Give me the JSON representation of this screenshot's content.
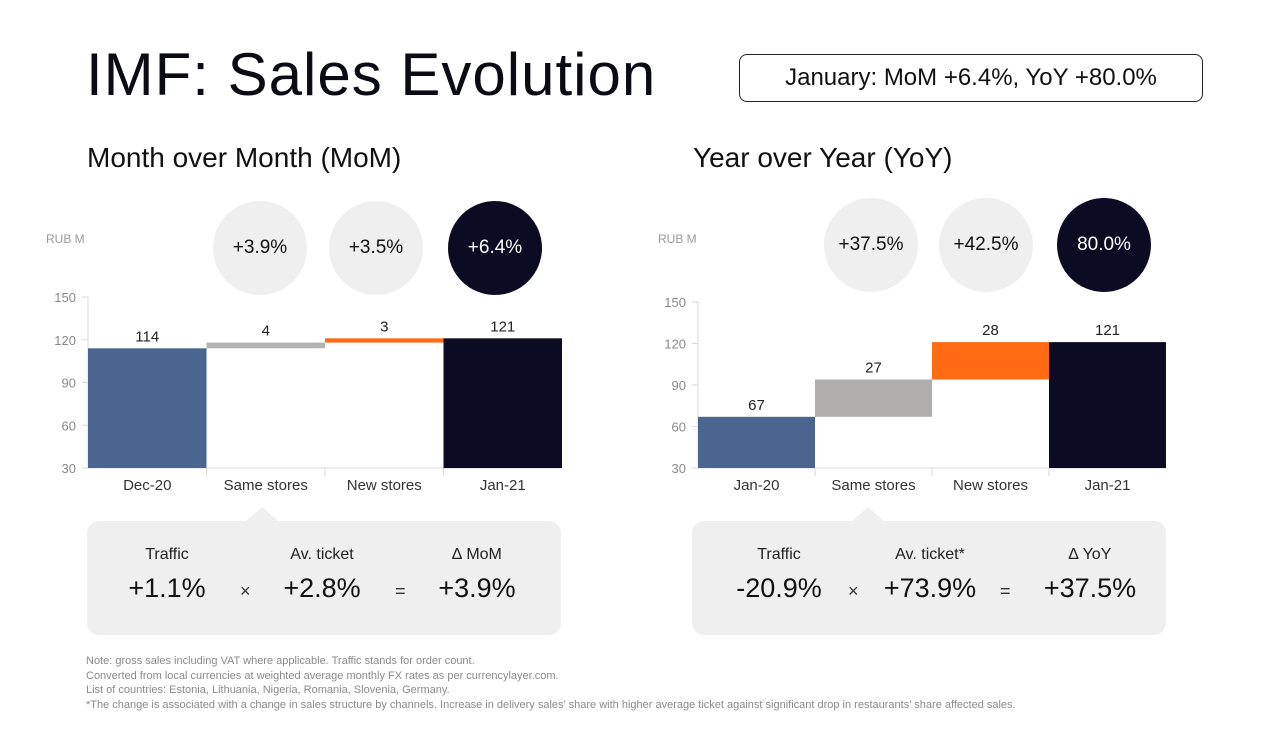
{
  "title": "IMF: Sales Evolution",
  "headline": "January: MoM +6.4%, YoY +80.0%",
  "mom": {
    "section_title": "Month over Month (MoM)",
    "unit": "RUB M",
    "bubbles": [
      "+3.9%",
      "+3.5%",
      "+6.4%"
    ],
    "callout": {
      "traffic_label": "Traffic",
      "traffic_value": "+1.1%",
      "times": "×",
      "ticket_label": "Av. ticket",
      "ticket_value": "+2.8%",
      "equals": "=",
      "delta_label": "∆ MoM",
      "delta_value": "+3.9%"
    }
  },
  "yoy": {
    "section_title": "Year over Year (YoY)",
    "unit": "RUB M",
    "bubbles": [
      "+37.5%",
      "+42.5%",
      "80.0%"
    ],
    "callout": {
      "traffic_label": "Traffic",
      "traffic_value": "-20.9%",
      "times": "×",
      "ticket_label": "Av. ticket*",
      "ticket_value": "+73.9%",
      "equals": "=",
      "delta_label": "∆ YoY",
      "delta_value": "+37.5%"
    }
  },
  "chart_data": [
    {
      "type": "bar",
      "subtype": "waterfall",
      "title": "Month over Month (MoM)",
      "ylabel": "RUB M",
      "ylim": [
        30,
        150
      ],
      "yticks": [
        30,
        60,
        90,
        120,
        150
      ],
      "categories": [
        "Dec-20",
        "Same stores",
        "New stores",
        "Jan-21"
      ],
      "bars": [
        {
          "start": 0,
          "end": 114,
          "label": "114",
          "color": "#4a658f"
        },
        {
          "start": 114,
          "end": 118,
          "label": "4",
          "color": "#b3b3b3"
        },
        {
          "start": 118,
          "end": 121,
          "label": "3",
          "color": "#ff6a13"
        },
        {
          "start": 0,
          "end": 121,
          "label": "121",
          "color": "#0b0b24"
        }
      ]
    },
    {
      "type": "bar",
      "subtype": "waterfall",
      "title": "Year over Year (YoY)",
      "ylabel": "RUB M",
      "ylim": [
        30,
        150
      ],
      "yticks": [
        30,
        60,
        90,
        120,
        150
      ],
      "categories": [
        "Jan-20",
        "Same stores",
        "New stores",
        "Jan-21"
      ],
      "bars": [
        {
          "start": 0,
          "end": 67,
          "label": "67",
          "color": "#4a658f"
        },
        {
          "start": 67,
          "end": 94,
          "label": "27",
          "color": "#b0adad"
        },
        {
          "start": 94,
          "end": 121,
          "label": "28",
          "color": "#ff6a13"
        },
        {
          "start": 0,
          "end": 121,
          "label": "121",
          "color": "#0b0b24"
        }
      ]
    }
  ],
  "notes": [
    "Note: gross sales including VAT where applicable. Traffic stands for order count.",
    "Converted from local currencies at weighted average monthly FX rates as per currencylayer.com.",
    "List of countries: Estonia, Lithuania, Nigeria, Romania, Slovenia, Germany.",
    "*The change is associated with a change in sales structure by channels. Increase in delivery sales’ share with higher average ticket against significant drop in restaurants’ share affected sales."
  ]
}
